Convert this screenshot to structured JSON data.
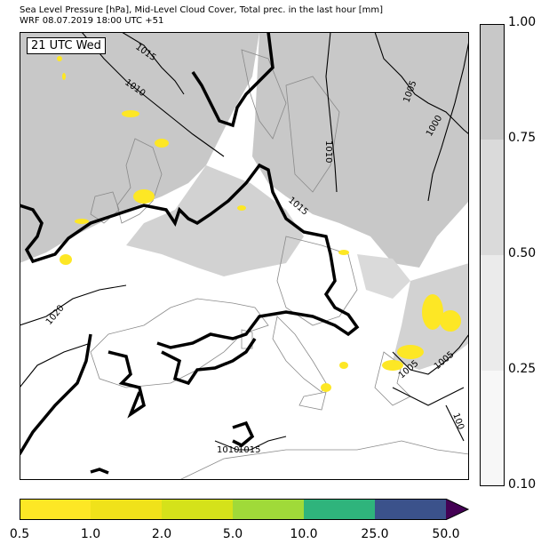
{
  "header": {
    "title_line1": "Sea Level Pressure [hPa], Mid-Level Cloud Cover, Total prec. in the last hour [mm]",
    "title_line2": "WRF 08.07.2019 18:00 UTC +51"
  },
  "map": {
    "valid_time": "21 UTC Wed",
    "isobar_labels": [
      "1015",
      "1010",
      "1005",
      "1000",
      "1010",
      "1015",
      "1020",
      "1005",
      "1005",
      "1010",
      "1015",
      "100"
    ]
  },
  "cloud_legend": {
    "ticks": [
      "1.00",
      "0.75",
      "0.50",
      "0.25",
      "0.10"
    ],
    "colors": [
      "#c8c8c8",
      "#dadada",
      "#ebebeb",
      "#f7f7f7"
    ]
  },
  "precip_legend": {
    "ticks": [
      "0.5",
      "1.0",
      "2.0",
      "5.0",
      "10.0",
      "25.0",
      "50.0"
    ],
    "colors": [
      "#fde725",
      "#f0e21a",
      "#d5e21a",
      "#a0da39",
      "#2fb47c",
      "#3b528b",
      "#440154"
    ]
  }
}
